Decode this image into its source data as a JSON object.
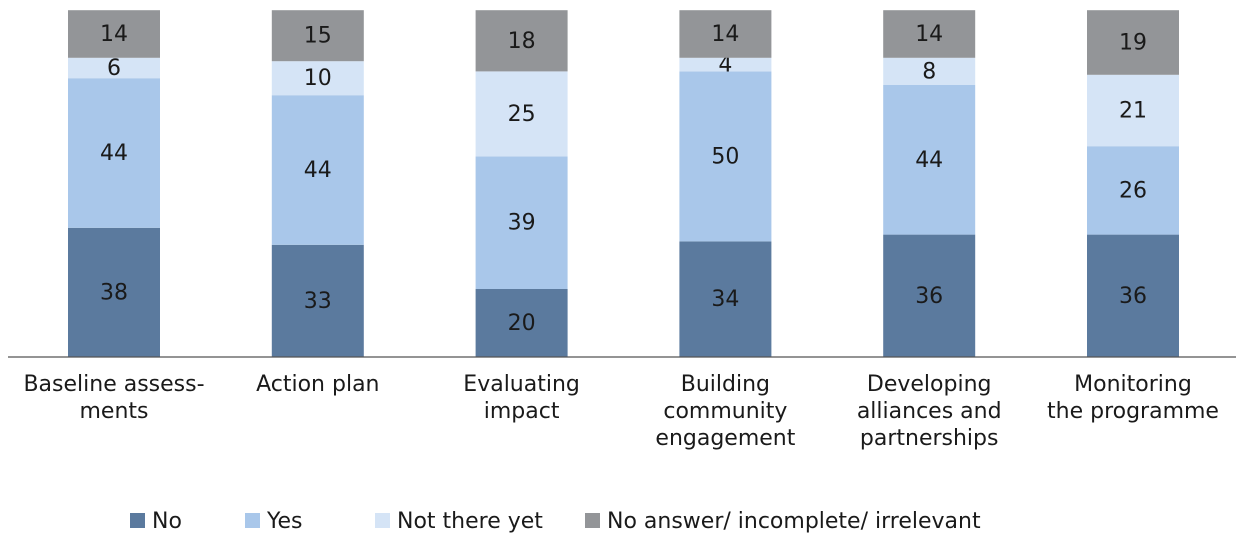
{
  "chart_data": {
    "type": "stacked_bar",
    "categories": [
      "Baseline assess-\nments",
      "Action plan",
      "Evaluating\nimpact",
      "Building\ncommunity\nengagement",
      "Developing\nalliances and\npartnerships",
      "Monitoring\nthe programme"
    ],
    "series": [
      {
        "name": "No",
        "color": "#5b7a9e",
        "values": [
          38,
          33,
          20,
          34,
          36,
          36
        ]
      },
      {
        "name": "Yes",
        "color": "#a9c7ea",
        "values": [
          44,
          44,
          39,
          50,
          44,
          26
        ]
      },
      {
        "name": "Not there yet",
        "color": "#d5e4f6",
        "values": [
          6,
          10,
          25,
          4,
          8,
          21
        ]
      },
      {
        "name": "No answer/ incomplete/ irrelevant",
        "color": "#939598",
        "values": [
          14,
          15,
          18,
          14,
          14,
          19
        ]
      }
    ],
    "ylim": [
      0,
      105
    ],
    "legend": "bottom"
  }
}
